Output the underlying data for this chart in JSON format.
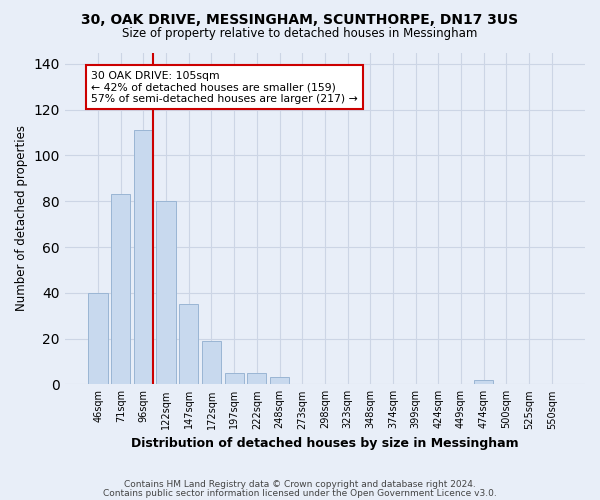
{
  "title": "30, OAK DRIVE, MESSINGHAM, SCUNTHORPE, DN17 3US",
  "subtitle": "Size of property relative to detached houses in Messingham",
  "xlabel": "Distribution of detached houses by size in Messingham",
  "ylabel": "Number of detached properties",
  "categories": [
    "46sqm",
    "71sqm",
    "96sqm",
    "122sqm",
    "147sqm",
    "172sqm",
    "197sqm",
    "222sqm",
    "248sqm",
    "273sqm",
    "298sqm",
    "323sqm",
    "348sqm",
    "374sqm",
    "399sqm",
    "424sqm",
    "449sqm",
    "474sqm",
    "500sqm",
    "525sqm",
    "550sqm"
  ],
  "values": [
    40,
    83,
    111,
    80,
    35,
    19,
    5,
    5,
    3,
    0,
    0,
    0,
    0,
    0,
    0,
    0,
    0,
    2,
    0,
    0,
    0
  ],
  "bar_color": "#c8d9ee",
  "bar_edge_color": "#9ab5d4",
  "red_line_index": 2,
  "annotation_text": "30 OAK DRIVE: 105sqm\n← 42% of detached houses are smaller (159)\n57% of semi-detached houses are larger (217) →",
  "annotation_box_color": "#ffffff",
  "annotation_box_edge_color": "#cc0000",
  "annotation_text_color": "#000000",
  "red_line_color": "#cc0000",
  "ylim": [
    0,
    145
  ],
  "yticks": [
    0,
    20,
    40,
    60,
    80,
    100,
    120,
    140
  ],
  "grid_color": "#ccd5e5",
  "bg_color": "#e8eef8",
  "footer1": "Contains HM Land Registry data © Crown copyright and database right 2024.",
  "footer2": "Contains public sector information licensed under the Open Government Licence v3.0."
}
